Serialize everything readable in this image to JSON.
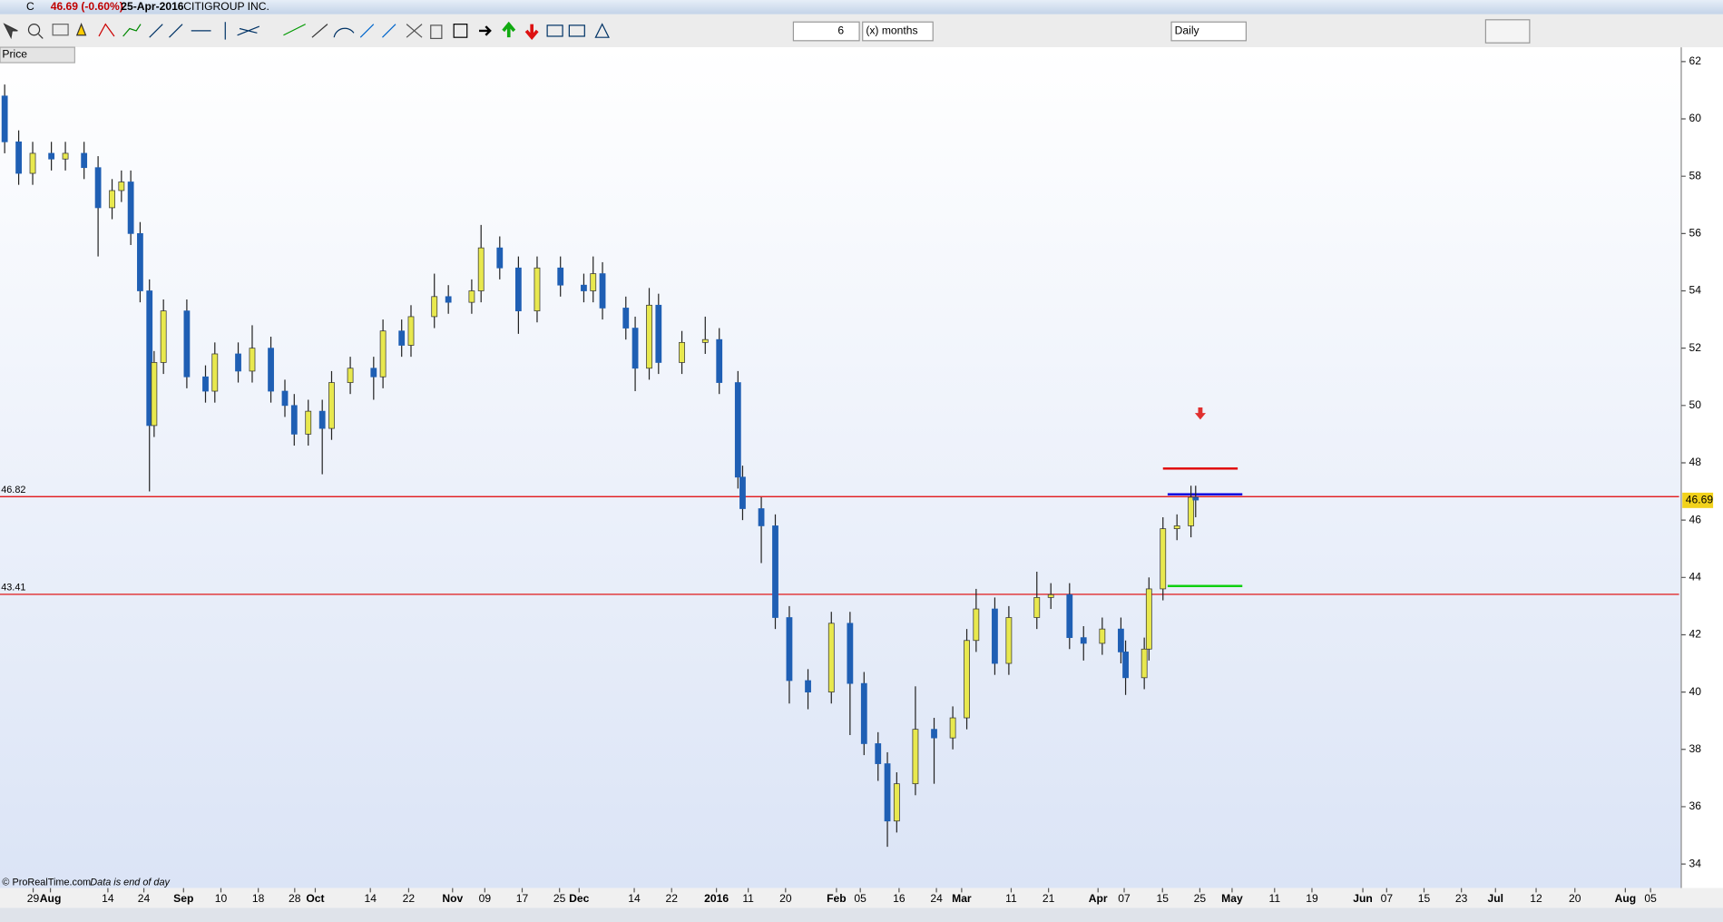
{
  "header": {
    "symbol": "C",
    "quote": "46.69 (-0.60%)",
    "date": "25-Apr-2016",
    "name": "CITIGROUP INC."
  },
  "toolbar": {
    "period_count": "6",
    "period_unit": "(x) months",
    "interval": "Daily"
  },
  "panel_label": "Price",
  "footer": {
    "source": "© ProRealTime.com",
    "note": "Data is end of day"
  },
  "chart_data": {
    "type": "candlestick",
    "x": [
      1,
      4,
      7,
      11,
      14,
      18,
      21,
      24,
      26,
      28,
      30,
      32,
      33,
      35,
      40,
      44,
      46,
      51,
      54,
      58,
      61,
      63,
      66,
      69,
      71,
      75,
      80,
      82,
      86,
      88,
      93,
      96,
      101,
      103,
      107,
      111,
      115,
      120,
      125,
      127,
      129,
      134,
      136,
      139,
      141,
      146,
      151,
      154,
      158,
      159,
      163,
      166,
      169,
      173,
      178,
      182,
      185,
      188,
      190,
      192,
      196,
      200,
      204,
      207,
      209,
      213,
      216,
      222,
      225,
      229,
      232,
      236,
      240,
      241,
      245,
      246,
      249,
      252,
      255,
      256
    ],
    "open": [
      60.8,
      59.2,
      58.1,
      58.8,
      58.6,
      58.8,
      58.3,
      56.9,
      57.5,
      57.8,
      56.0,
      54.0,
      49.3,
      51.5,
      53.3,
      51.0,
      50.5,
      51.8,
      51.2,
      52.0,
      50.5,
      50.0,
      49.0,
      49.8,
      49.2,
      50.8,
      51.3,
      51.0,
      52.6,
      52.1,
      53.1,
      53.8,
      53.6,
      54.0,
      55.5,
      54.8,
      53.3,
      54.8,
      54.2,
      54.0,
      54.6,
      53.4,
      52.7,
      51.3,
      53.5,
      51.5,
      52.2,
      52.3,
      50.8,
      47.5,
      46.4,
      45.8,
      42.6,
      40.4,
      40.0,
      42.4,
      40.3,
      38.2,
      37.5,
      35.5,
      36.8,
      38.7,
      38.4,
      39.1,
      41.8,
      42.9,
      41.0,
      42.6,
      43.3,
      43.4,
      41.9,
      41.7,
      42.2,
      41.4,
      40.5,
      41.5,
      43.6,
      45.7,
      45.8,
      46.8
    ],
    "high": [
      61.2,
      59.6,
      59.2,
      59.2,
      59.2,
      59.2,
      58.7,
      57.9,
      58.2,
      58.2,
      56.4,
      54.4,
      51.9,
      53.7,
      53.7,
      51.4,
      52.2,
      52.2,
      52.8,
      52.4,
      50.9,
      50.4,
      50.2,
      50.2,
      51.2,
      51.7,
      51.7,
      53.0,
      53.0,
      53.5,
      54.6,
      54.2,
      54.4,
      56.3,
      55.9,
      55.2,
      55.2,
      55.2,
      54.6,
      55.2,
      55.0,
      53.8,
      53.1,
      54.1,
      53.9,
      52.6,
      53.1,
      52.7,
      51.2,
      47.9,
      46.8,
      46.2,
      43.0,
      40.8,
      42.8,
      42.8,
      40.7,
      38.6,
      37.9,
      37.2,
      40.2,
      39.1,
      39.5,
      42.2,
      43.6,
      43.3,
      43.0,
      44.2,
      43.8,
      43.8,
      42.3,
      42.6,
      42.6,
      41.8,
      41.9,
      44.0,
      46.1,
      46.2,
      47.2,
      47.2
    ],
    "low": [
      58.8,
      57.7,
      57.7,
      58.2,
      58.2,
      57.9,
      55.2,
      56.5,
      57.1,
      55.6,
      53.6,
      47.0,
      48.9,
      51.1,
      50.6,
      50.1,
      50.1,
      50.8,
      50.8,
      50.1,
      49.6,
      48.6,
      48.6,
      47.6,
      48.8,
      50.4,
      50.2,
      50.6,
      51.7,
      51.7,
      52.7,
      53.2,
      53.2,
      53.6,
      54.4,
      52.5,
      52.9,
      53.8,
      53.6,
      53.6,
      53.0,
      52.3,
      50.5,
      50.9,
      51.1,
      51.1,
      51.8,
      50.4,
      47.1,
      46.0,
      44.5,
      42.2,
      39.6,
      39.4,
      39.6,
      38.5,
      37.8,
      36.9,
      34.6,
      35.1,
      36.4,
      36.8,
      38.0,
      38.7,
      41.4,
      40.6,
      40.6,
      42.2,
      42.9,
      41.5,
      41.1,
      41.3,
      41.0,
      39.9,
      40.1,
      41.1,
      43.2,
      45.3,
      45.4,
      46.1
    ],
    "close": [
      59.2,
      58.1,
      58.8,
      58.6,
      58.8,
      58.3,
      56.9,
      57.5,
      57.8,
      56.0,
      54.0,
      49.3,
      51.5,
      53.3,
      51.0,
      50.5,
      51.8,
      51.2,
      52.0,
      50.5,
      50.0,
      49.0,
      49.8,
      49.2,
      50.8,
      51.3,
      51.0,
      52.6,
      52.1,
      53.1,
      53.8,
      53.6,
      54.0,
      55.5,
      54.8,
      53.3,
      54.8,
      54.2,
      54.0,
      54.6,
      53.4,
      52.7,
      51.3,
      53.5,
      51.5,
      52.2,
      52.3,
      50.8,
      47.5,
      46.4,
      45.8,
      42.6,
      40.4,
      40.0,
      42.4,
      40.3,
      38.2,
      37.5,
      35.5,
      36.8,
      38.7,
      38.4,
      39.1,
      41.8,
      42.9,
      41.0,
      42.6,
      43.3,
      43.4,
      41.9,
      41.7,
      42.2,
      41.4,
      40.5,
      41.5,
      43.6,
      45.7,
      45.8,
      46.8,
      46.7
    ],
    "up_color": "#e8e84e",
    "down_color": "#1f5fb4",
    "xlim": [
      0,
      359.5
    ],
    "ylim": [
      33.2,
      62.5
    ],
    "yticks": [
      34,
      36,
      38,
      40,
      42,
      44,
      46,
      48,
      50,
      52,
      54,
      56,
      58,
      60,
      62
    ],
    "xticks": [
      {
        "value": 7.1,
        "label": "29"
      },
      {
        "value": 10.8,
        "label": "Aug"
      },
      {
        "value": 23.1,
        "label": "14"
      },
      {
        "value": 30.8,
        "label": "24"
      },
      {
        "value": 39.3,
        "label": "Sep"
      },
      {
        "value": 47.3,
        "label": "10"
      },
      {
        "value": 55.3,
        "label": "18"
      },
      {
        "value": 63.1,
        "label": "28"
      },
      {
        "value": 67.5,
        "label": "Oct"
      },
      {
        "value": 79.3,
        "label": "14"
      },
      {
        "value": 87.5,
        "label": "22"
      },
      {
        "value": 96.9,
        "label": "Nov"
      },
      {
        "value": 103.8,
        "label": "09"
      },
      {
        "value": 111.8,
        "label": "17"
      },
      {
        "value": 119.8,
        "label": "25"
      },
      {
        "value": 124,
        "label": "Dec"
      },
      {
        "value": 135.8,
        "label": "14"
      },
      {
        "value": 143.8,
        "label": "22"
      },
      {
        "value": 153.4,
        "label": "2016"
      },
      {
        "value": 160.2,
        "label": "11"
      },
      {
        "value": 168.2,
        "label": "20"
      },
      {
        "value": 179.1,
        "label": "Feb"
      },
      {
        "value": 184.2,
        "label": "05"
      },
      {
        "value": 192.5,
        "label": "16"
      },
      {
        "value": 200.5,
        "label": "24"
      },
      {
        "value": 205.9,
        "label": "Mar"
      },
      {
        "value": 216.5,
        "label": "11"
      },
      {
        "value": 224.5,
        "label": "21"
      },
      {
        "value": 235.1,
        "label": "Apr"
      },
      {
        "value": 240.7,
        "label": "07"
      },
      {
        "value": 248.9,
        "label": "15"
      },
      {
        "value": 256.9,
        "label": "25"
      },
      {
        "value": 263.8,
        "label": "May"
      },
      {
        "value": 272.9,
        "label": "11"
      },
      {
        "value": 280.9,
        "label": "19"
      },
      {
        "value": 291.8,
        "label": "Jun"
      },
      {
        "value": 296.9,
        "label": "07"
      },
      {
        "value": 304.9,
        "label": "15"
      },
      {
        "value": 312.9,
        "label": "23"
      },
      {
        "value": 320.2,
        "label": "Jul"
      },
      {
        "value": 328.9,
        "label": "12"
      },
      {
        "value": 337.2,
        "label": "20"
      },
      {
        "value": 348,
        "label": "Aug"
      },
      {
        "value": 353.4,
        "label": "05"
      }
    ],
    "last_price": 46.69,
    "last_price_color": "#f2d21b",
    "hlines": [
      {
        "value": 46.82,
        "color": "#e00000"
      },
      {
        "value": 43.41,
        "color": "#e00000"
      }
    ],
    "segments": [
      {
        "value": 47.8,
        "x": [
          249,
          265
        ],
        "color": "#e00000"
      },
      {
        "value": 46.9,
        "x": [
          250,
          266
        ],
        "color": "#0000e0"
      },
      {
        "value": 43.7,
        "x": [
          250,
          266
        ],
        "color": "#10d010"
      }
    ],
    "arrow": {
      "x": 257,
      "y": 49.7,
      "color": "#e03030"
    }
  }
}
